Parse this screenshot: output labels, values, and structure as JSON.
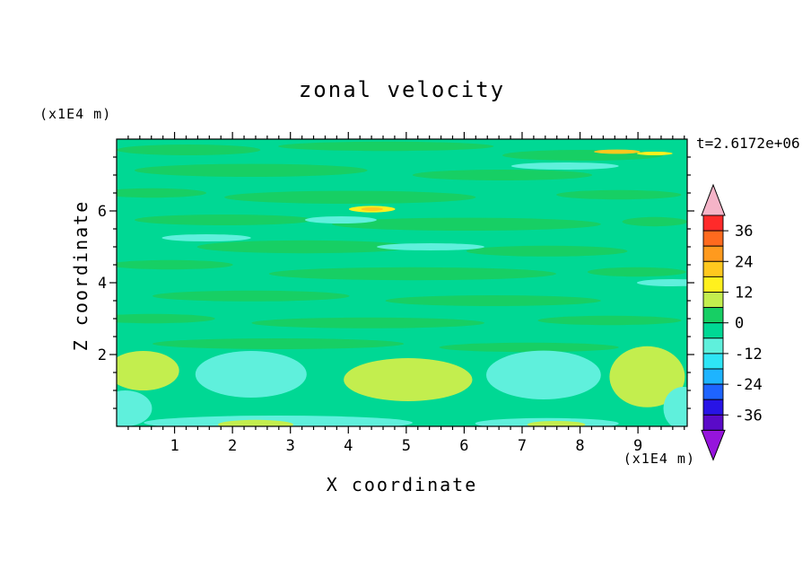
{
  "title": "zonal velocity",
  "time_label": "t=2.6172e+06",
  "x_axis": {
    "label": "X coordinate",
    "unit": "(x1E4 m)",
    "major_ticks": [
      1,
      2,
      3,
      4,
      5,
      6,
      7,
      8,
      9
    ],
    "minor_step": 0.2,
    "range": [
      0,
      9.85
    ]
  },
  "y_axis": {
    "label": "Z coordinate",
    "unit": "(x1E4 m)",
    "major_ticks": [
      2,
      4,
      6
    ],
    "minor_step": 0.5,
    "range": [
      0,
      8
    ]
  },
  "colorbar": {
    "labels": [
      36,
      24,
      12,
      0,
      -12,
      -24,
      -36
    ],
    "levels": [
      42,
      36,
      30,
      24,
      18,
      12,
      6,
      0,
      -6,
      -12,
      -18,
      -24,
      -30,
      -36,
      -42
    ],
    "band_colors": [
      "#ff2a2a",
      "#ff6a1e",
      "#ff9a1e",
      "#ffc81e",
      "#fff01e",
      "#c3ee4e",
      "#17cf64",
      "#00d894",
      "#5ff0dc",
      "#2ee5f5",
      "#1eb4ff",
      "#1e64ff",
      "#2814e6",
      "#5a0ac8"
    ],
    "over_color": "#f5b4c8",
    "under_color": "#9614dc"
  },
  "chart_data": {
    "type": "filled_contour",
    "title": "zonal velocity",
    "xlabel": "X coordinate (x1E4 m)",
    "ylabel": "Z coordinate (x1E4 m)",
    "time": "t=2.6172e+06",
    "x_range": [
      0,
      9.85
    ],
    "z_range": [
      0,
      8
    ],
    "contour_interval": 6,
    "value_range_shown": [
      -42,
      42
    ],
    "base_value": -3,
    "features": [
      {
        "x": 1.24,
        "z": 7.7,
        "rx": 1.24,
        "rz": 0.15,
        "v": 3
      },
      {
        "x": 4.65,
        "z": 7.8,
        "rx": 1.86,
        "rz": 0.13,
        "v": 3
      },
      {
        "x": 8.05,
        "z": 7.55,
        "rx": 1.39,
        "rz": 0.15,
        "v": 3
      },
      {
        "x": 2.32,
        "z": 7.13,
        "rx": 2.01,
        "rz": 0.18,
        "v": 3
      },
      {
        "x": 6.66,
        "z": 7.0,
        "rx": 1.55,
        "rz": 0.15,
        "v": 3
      },
      {
        "x": 0.62,
        "z": 6.5,
        "rx": 0.93,
        "rz": 0.13,
        "v": 3
      },
      {
        "x": 4.03,
        "z": 6.38,
        "rx": 2.17,
        "rz": 0.18,
        "v": 3
      },
      {
        "x": 8.67,
        "z": 6.45,
        "rx": 1.08,
        "rz": 0.13,
        "v": 3
      },
      {
        "x": 1.86,
        "z": 5.75,
        "rx": 1.55,
        "rz": 0.15,
        "v": 3
      },
      {
        "x": 6.04,
        "z": 5.63,
        "rx": 2.32,
        "rz": 0.18,
        "v": 3
      },
      {
        "x": 9.29,
        "z": 5.7,
        "rx": 0.56,
        "rz": 0.13,
        "v": 3
      },
      {
        "x": 3.25,
        "z": 5.0,
        "rx": 1.86,
        "rz": 0.18,
        "v": 3
      },
      {
        "x": 7.43,
        "z": 4.88,
        "rx": 1.39,
        "rz": 0.15,
        "v": 3
      },
      {
        "x": 0.93,
        "z": 4.5,
        "rx": 1.08,
        "rz": 0.13,
        "v": 3
      },
      {
        "x": 5.11,
        "z": 4.25,
        "rx": 2.48,
        "rz": 0.18,
        "v": 3
      },
      {
        "x": 8.98,
        "z": 4.3,
        "rx": 0.85,
        "rz": 0.13,
        "v": 3
      },
      {
        "x": 2.32,
        "z": 3.63,
        "rx": 1.7,
        "rz": 0.15,
        "v": 3
      },
      {
        "x": 6.5,
        "z": 3.5,
        "rx": 1.86,
        "rz": 0.15,
        "v": 3
      },
      {
        "x": 0.62,
        "z": 3.0,
        "rx": 1.08,
        "rz": 0.13,
        "v": 3
      },
      {
        "x": 4.34,
        "z": 2.88,
        "rx": 2.01,
        "rz": 0.15,
        "v": 3
      },
      {
        "x": 8.51,
        "z": 2.95,
        "rx": 1.24,
        "rz": 0.13,
        "v": 3
      },
      {
        "x": 2.79,
        "z": 2.3,
        "rx": 2.17,
        "rz": 0.15,
        "v": 3
      },
      {
        "x": 7.12,
        "z": 2.2,
        "rx": 1.55,
        "rz": 0.13,
        "v": 3
      },
      {
        "x": 7.74,
        "z": 7.25,
        "rx": 0.93,
        "rz": 0.1,
        "v": -9
      },
      {
        "x": 1.55,
        "z": 5.25,
        "rx": 0.77,
        "rz": 0.1,
        "v": -9
      },
      {
        "x": 5.42,
        "z": 5.0,
        "rx": 0.93,
        "rz": 0.1,
        "v": -9
      },
      {
        "x": 9.6,
        "z": 4.0,
        "rx": 0.62,
        "rz": 0.1,
        "v": -9
      },
      {
        "x": 3.87,
        "z": 5.75,
        "rx": 0.62,
        "rz": 0.1,
        "v": -9
      },
      {
        "x": 0.46,
        "z": 1.55,
        "rx": 0.62,
        "rz": 0.55,
        "v": 9
      },
      {
        "x": 5.03,
        "z": 1.3,
        "rx": 1.11,
        "rz": 0.6,
        "v": 9
      },
      {
        "x": 9.16,
        "z": 1.38,
        "rx": 0.65,
        "rz": 0.85,
        "v": 9
      },
      {
        "x": 2.32,
        "z": 1.45,
        "rx": 0.96,
        "rz": 0.65,
        "v": -9
      },
      {
        "x": 7.37,
        "z": 1.43,
        "rx": 0.99,
        "rz": 0.68,
        "v": -9
      },
      {
        "x": 9.78,
        "z": 0.5,
        "rx": 0.34,
        "rz": 0.6,
        "v": -9
      },
      {
        "x": 0.15,
        "z": 0.5,
        "rx": 0.46,
        "rz": 0.5,
        "v": -9
      },
      {
        "x": 2.79,
        "z": 0.1,
        "rx": 2.32,
        "rz": 0.2,
        "v": -9
      },
      {
        "x": 7.43,
        "z": 0.08,
        "rx": 1.24,
        "rz": 0.15,
        "v": -9
      },
      {
        "x": 2.4,
        "z": 0.05,
        "rx": 0.65,
        "rz": 0.13,
        "v": 9
      },
      {
        "x": 7.59,
        "z": 0.05,
        "rx": 0.5,
        "rz": 0.1,
        "v": 9
      },
      {
        "x": 4.41,
        "z": 6.05,
        "rx": 0.4,
        "rz": 0.09,
        "v": 15
      },
      {
        "x": 4.41,
        "z": 6.05,
        "rx": 0.19,
        "rz": 0.05,
        "v": 21
      },
      {
        "x": 8.64,
        "z": 7.65,
        "rx": 0.4,
        "rz": 0.06,
        "v": 21
      },
      {
        "x": 9.29,
        "z": 7.6,
        "rx": 0.31,
        "rz": 0.05,
        "v": 15
      }
    ]
  }
}
